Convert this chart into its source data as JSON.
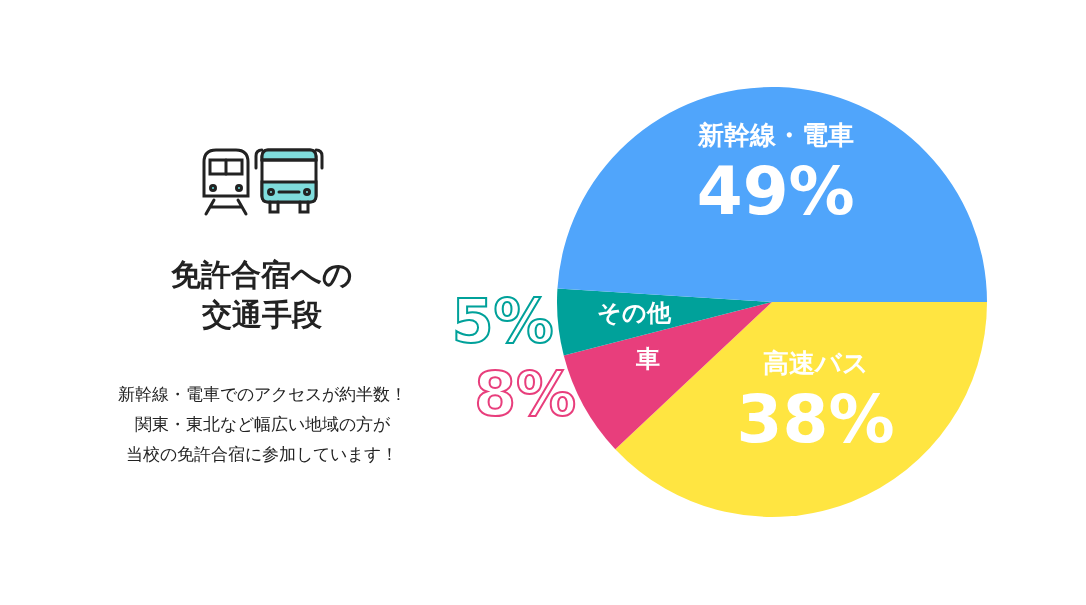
{
  "chart_data": {
    "type": "pie",
    "title": "免許合宿への交通手段",
    "annotations": [
      "新幹線・電車でのアクセスが約半数！",
      "関東・東北など幅広い地域の方が",
      "当校の免許合宿に参加しています！"
    ],
    "categories": [
      "高速バス",
      "車",
      "その他",
      "新幹線・電車"
    ],
    "values": [
      38,
      8,
      5,
      49
    ],
    "colors": [
      "#ffe541",
      "#e83e7c",
      "#00a19a",
      "#50a5fb"
    ],
    "value_labels": [
      "38%",
      "8%",
      "5%",
      "49%"
    ]
  }
}
